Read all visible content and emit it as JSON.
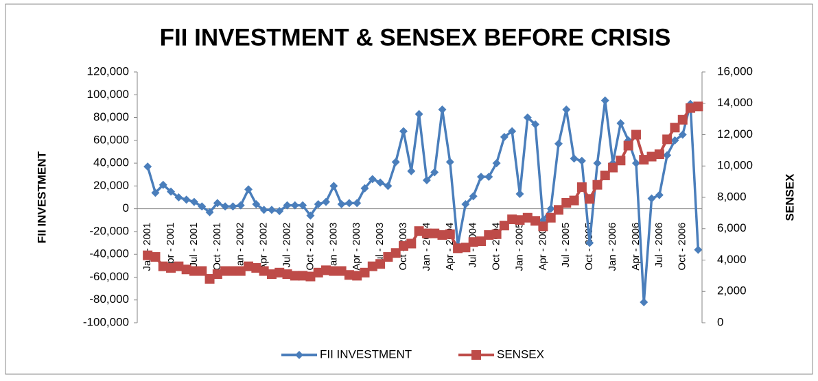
{
  "chart_data": {
    "type": "line",
    "title": "FII INVESTMENT & SENSEX BEFORE CRISIS",
    "y_label": "FII INVESTMENT",
    "y2_label": "SENSEX",
    "categories": [
      "Jan - 2001",
      null,
      null,
      "Apr - 2001",
      null,
      null,
      "Jul - 2001",
      null,
      null,
      "Oct - 2001",
      null,
      null,
      "Jan - 2002",
      null,
      null,
      "Apr - 2002",
      null,
      null,
      "Jul - 2002",
      null,
      null,
      "Oct - 2002",
      null,
      null,
      "Jan - 2003",
      null,
      null,
      "Apr - 2003",
      null,
      null,
      "Jul - 2003",
      null,
      null,
      "Oct - 2003",
      null,
      null,
      "Jan - 2004",
      null,
      null,
      "Apr - 2004",
      null,
      null,
      "Jul - 2004",
      null,
      null,
      "Oct - 2004",
      null,
      null,
      "Jan - 2005",
      null,
      null,
      "Apr - 2005",
      null,
      null,
      "Jul - 2005",
      null,
      null,
      "Oct - 2005",
      null,
      null,
      "Jan - 2006",
      null,
      null,
      "Apr - 2006",
      null,
      null,
      "Jul - 2006",
      null,
      null,
      "Oct - 2006",
      null,
      null
    ],
    "series": [
      {
        "name": "FII INVESTMENT",
        "color": "#4a7ebb",
        "marker": "diamond",
        "values": [
          37000,
          14000,
          21000,
          15000,
          10000,
          8000,
          6000,
          2000,
          -3000,
          5000,
          2000,
          2000,
          3000,
          17000,
          4000,
          -1000,
          -1000,
          -2000,
          3000,
          3000,
          3000,
          -6000,
          4000,
          6000,
          20000,
          4000,
          5000,
          5000,
          18000,
          26000,
          23000,
          20000,
          41000,
          68000,
          33000,
          83000,
          25000,
          32000,
          87000,
          41000,
          -32000,
          4000,
          11000,
          28000,
          28000,
          40000,
          63000,
          68000,
          13000,
          80000,
          74000,
          -10000,
          0,
          57000,
          87000,
          44000,
          42000,
          -30000,
          40000,
          95000,
          40000,
          75000,
          60000,
          40000,
          -82000,
          9000,
          12000,
          47000,
          60000,
          65000,
          92000,
          -36000
        ]
      },
      {
        "name": "SENSEX",
        "color": "#be4b48",
        "marker": "square",
        "axis": "y2",
        "values": [
          4300,
          4200,
          3600,
          3500,
          3600,
          3400,
          3300,
          3300,
          2800,
          3100,
          3300,
          3300,
          3300,
          3600,
          3500,
          3300,
          3100,
          3200,
          3100,
          3000,
          3000,
          2950,
          3200,
          3350,
          3300,
          3300,
          3050,
          3000,
          3200,
          3600,
          3750,
          4200,
          4450,
          4900,
          5050,
          5850,
          5700,
          5700,
          5600,
          5650,
          4750,
          4800,
          5150,
          5200,
          5600,
          5650,
          6200,
          6600,
          6550,
          6700,
          6500,
          6150,
          6700,
          7200,
          7650,
          7800,
          8650,
          7900,
          8800,
          9400,
          9900,
          10350,
          11300,
          12000,
          10400,
          10600,
          10750,
          11700,
          12450,
          12950,
          13700,
          13800
        ]
      }
    ],
    "ylim": [
      -100000,
      120000
    ],
    "yticks": [
      {
        "value": -100000,
        "label": "-100,000"
      },
      {
        "value": -80000,
        "label": "-80,000"
      },
      {
        "value": -60000,
        "label": "-60,000"
      },
      {
        "value": -40000,
        "label": "-40,000"
      },
      {
        "value": -20000,
        "label": "-20,000"
      },
      0,
      {
        "value": 20000,
        "label": "20,000"
      },
      {
        "value": 40000,
        "label": "40,000"
      },
      {
        "value": 60000,
        "label": "60,000"
      },
      {
        "value": 80000,
        "label": "80,000"
      },
      {
        "value": 100000,
        "label": "100,000"
      },
      {
        "value": 120000,
        "label": "120,000"
      }
    ],
    "y2lim": [
      0,
      16000
    ],
    "y2ticks": [
      0,
      {
        "value": 2000,
        "label": "2,000"
      },
      {
        "value": 4000,
        "label": "4,000"
      },
      {
        "value": 6000,
        "label": "6,000"
      },
      {
        "value": 8000,
        "label": "8,000"
      },
      {
        "value": 10000,
        "label": "10,000"
      },
      {
        "value": 12000,
        "label": "12,000"
      },
      {
        "value": 14000,
        "label": "14,000"
      },
      {
        "value": 16000,
        "label": "16,000"
      }
    ],
    "legend": "bottom",
    "grid": false
  }
}
